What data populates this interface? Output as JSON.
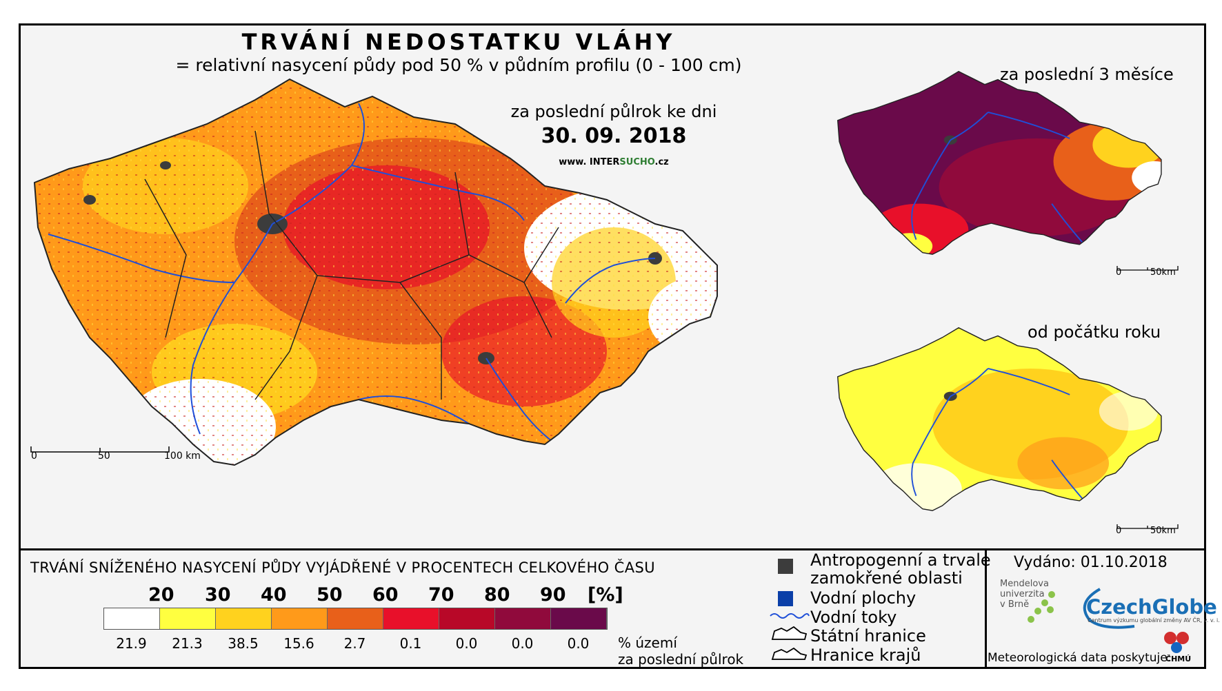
{
  "title": "TRVÁNÍ NEDOSTATKU VLÁHY",
  "subtitle": "= relativní nasycení půdy pod 50 % v půdním profilu (0 - 100 cm)",
  "period_label": "za poslední půlrok ke dni",
  "date": "30. 09. 2018",
  "website": {
    "prefix": "www. INTER",
    "highlight": "SUCHO",
    "suffix": ".cz"
  },
  "inset_3m_label": "za poslední 3 měsíce",
  "inset_year_label": "od počátku roku",
  "scale_main": [
    "0",
    "50",
    "100 km"
  ],
  "scale_inset": [
    "0",
    "50km"
  ],
  "legend": {
    "title": "TRVÁNÍ SNÍŽENÉHO NASYCENÍ PŮDY VYJÁDŘENÉ V PROCENTECH CELKOVÉHO ČASU",
    "ticks": [
      "20",
      "30",
      "40",
      "50",
      "60",
      "70",
      "80",
      "90",
      "[%]"
    ],
    "colors": [
      "#ffffff",
      "#ffff40",
      "#ffd21e",
      "#ff9a1a",
      "#e8601a",
      "#e8102a",
      "#b80828",
      "#900a3c",
      "#6a0a4a"
    ],
    "percent_values": [
      "21.9",
      "21.3",
      "38.5",
      "15.6",
      "2.7",
      "0.1",
      "0.0",
      "0.0",
      "0.0"
    ],
    "percent_label_1": "% území",
    "percent_label_2": "za poslední půlrok"
  },
  "key": {
    "urban_1": "Antropogenní a trvale",
    "urban_2": "zamokřené oblasti",
    "water": "Vodní plochy",
    "rivers": "Vodní toky",
    "border": "Státní hranice",
    "regions": "Hranice krajů",
    "colors": {
      "urban": "#3c3c3c",
      "water": "#0b3fa8",
      "river": "#1f4fd8"
    }
  },
  "issued": "Vydáno: 01.10.2018",
  "mendel": [
    "Mendelova",
    "univerzita",
    "v Brně"
  ],
  "czechglobe": "CzechGlobe",
  "czechglobe_sub": "Centrum výzkumu globální změny AV ČR, v. v. i.",
  "meteo": "Meteorologická data poskytuje:",
  "chmu": "ČHMÚ"
}
